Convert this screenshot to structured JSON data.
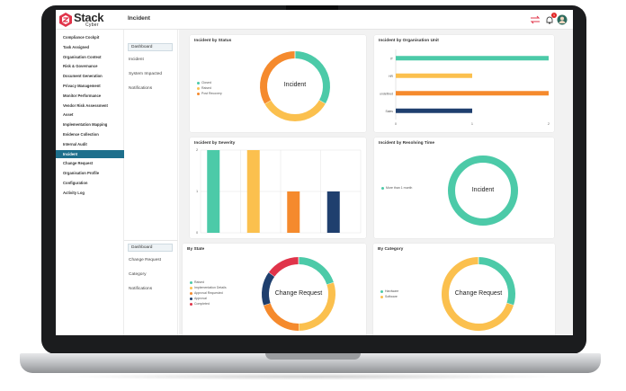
{
  "app": {
    "logo_name": "Stack",
    "logo_sub": "Cyber",
    "page_title": "Incident",
    "notification_count": "1"
  },
  "sidebar": {
    "items": [
      {
        "label": "Compliance Cockpit",
        "active": false
      },
      {
        "label": "Task Assigned",
        "active": false
      },
      {
        "label": "Organisation Context",
        "active": false
      },
      {
        "label": "Risk & Governance",
        "active": false
      },
      {
        "label": "Document Generation",
        "active": false
      },
      {
        "label": "Privacy Management",
        "active": false
      },
      {
        "label": "Monitor Performance",
        "active": false
      },
      {
        "label": "Vendor Risk Assessment",
        "active": false
      },
      {
        "label": "Asset",
        "active": false
      },
      {
        "label": "Implementation Mapping",
        "active": false
      },
      {
        "label": "Evidence Collection",
        "active": false
      },
      {
        "label": "Internal Audit",
        "active": false
      },
      {
        "label": "Incident",
        "active": true
      },
      {
        "label": "Change Request",
        "active": false
      },
      {
        "label": "Organisation Profile",
        "active": false
      },
      {
        "label": "Configuration",
        "active": false
      },
      {
        "label": "Activity Log",
        "active": false
      }
    ],
    "active_color": "#1e6f8c"
  },
  "incident_subnav": {
    "items": [
      {
        "label": "Dashboard",
        "active": true
      },
      {
        "label": "Incident",
        "active": false
      },
      {
        "label": "System Impacted",
        "active": false
      },
      {
        "label": "Notifications",
        "active": false
      }
    ]
  },
  "change_subnav": {
    "items": [
      {
        "label": "Dashboard",
        "active": true
      },
      {
        "label": "Change Request",
        "active": false
      },
      {
        "label": "Category",
        "active": false
      },
      {
        "label": "Notifications",
        "active": false
      }
    ]
  },
  "colors": {
    "teal": "#4ccaa8",
    "yellow": "#fbc04e",
    "orange": "#f58a2d",
    "navy": "#1f3f6e",
    "red": "#e0344a"
  },
  "cards": {
    "status": {
      "title": "Incident by Status",
      "center": "Incident",
      "chart_data": {
        "type": "pie",
        "labels": [
          "Closed",
          "Raised",
          "Post Recovery"
        ],
        "values": [
          1,
          1,
          1
        ],
        "colors": [
          "#4ccaa8",
          "#fbc04e",
          "#f58a2d"
        ],
        "legend": "left"
      }
    },
    "org_unit": {
      "title": "Incident by Organisation Unit",
      "chart_data": {
        "type": "bar",
        "orientation": "horizontal",
        "categories": [
          "IT",
          "HR",
          "undefined",
          "Sales"
        ],
        "values": [
          2,
          1,
          2,
          1
        ],
        "colors": [
          "#4ccaa8",
          "#fbc04e",
          "#f58a2d",
          "#1f3f6e"
        ],
        "xlim": [
          0,
          2
        ],
        "xticks": [
          "0",
          "1",
          "2"
        ],
        "grid": false
      }
    },
    "severity": {
      "title": "Incident by Severity",
      "chart_data": {
        "type": "bar",
        "orientation": "vertical",
        "categories": [
          "",
          "",
          "",
          ""
        ],
        "values": [
          2,
          2,
          1,
          1
        ],
        "colors": [
          "#4ccaa8",
          "#fbc04e",
          "#f58a2d",
          "#1f3f6e"
        ],
        "ylim": [
          0,
          2
        ],
        "yticks": [
          "0",
          "1",
          "2"
        ],
        "grid": true
      }
    },
    "resolving": {
      "title": "Incident by Resolving Time",
      "center": "Incident",
      "chart_data": {
        "type": "pie",
        "labels": [
          "More than 1 month"
        ],
        "values": [
          1
        ],
        "colors": [
          "#4ccaa8"
        ],
        "legend": "left"
      }
    },
    "by_state": {
      "title": "By State",
      "center": "Change Request",
      "chart_data": {
        "type": "pie",
        "labels": [
          "Raised",
          "Implementation Details",
          "Approval Requested",
          "Approval",
          "Completed"
        ],
        "values": [
          20,
          30,
          20,
          15,
          15
        ],
        "colors": [
          "#4ccaa8",
          "#fbc04e",
          "#f58a2d",
          "#1f3f6e",
          "#e0344a"
        ],
        "legend": "left"
      }
    },
    "by_category": {
      "title": "By Category",
      "center": "Change Request",
      "chart_data": {
        "type": "pie",
        "labels": [
          "Hardware",
          "Software"
        ],
        "values": [
          30,
          70
        ],
        "colors": [
          "#4ccaa8",
          "#fbc04e"
        ],
        "legend": "left"
      }
    }
  }
}
